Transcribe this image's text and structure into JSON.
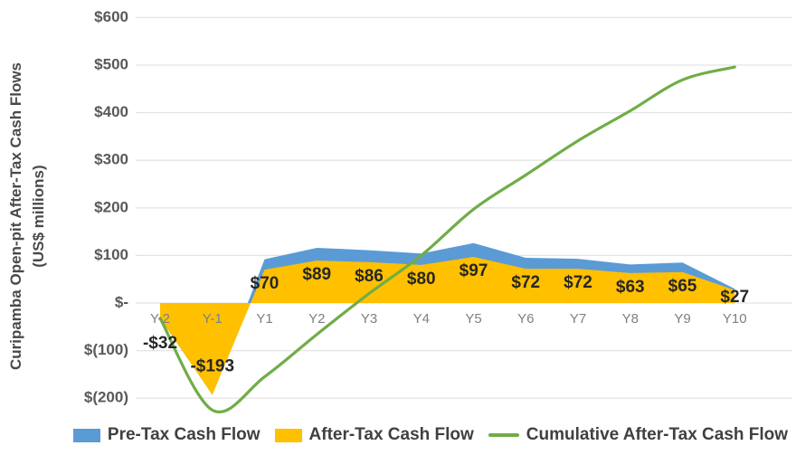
{
  "axis_title": {
    "line1": "Curipamba Open-pit After-Tax Cash Flows",
    "line2": "(US$ millions)"
  },
  "legend": [
    {
      "label": "Pre-Tax Cash Flow",
      "color": "#5B9BD5",
      "marker": "area-swatch"
    },
    {
      "label": "After-Tax Cash Flow",
      "color": "#FFC000",
      "marker": "area-swatch"
    },
    {
      "label": "Cumulative After-Tax Cash Flow",
      "color": "#70AD47",
      "marker": "line-swatch"
    }
  ],
  "chart_data": {
    "type": "area",
    "categories": [
      "Y-2",
      "Y-1",
      "Y1",
      "Y2",
      "Y3",
      "Y4",
      "Y5",
      "Y6",
      "Y7",
      "Y8",
      "Y9",
      "Y10"
    ],
    "series": [
      {
        "name": "Pre-Tax Cash Flow",
        "type": "area",
        "color": "#5B9BD5",
        "values": [
          -32,
          -193,
          92,
          116,
          111,
          104,
          126,
          95,
          93,
          81,
          85,
          30
        ],
        "note": "values estimated from pixels; mostly hidden behind after-tax area"
      },
      {
        "name": "After-Tax Cash Flow",
        "type": "area",
        "color": "#FFC000",
        "values": [
          -32,
          -193,
          70,
          89,
          86,
          80,
          97,
          72,
          72,
          63,
          65,
          27
        ],
        "labels": [
          "-$32",
          "-$193",
          "$70",
          "$89",
          "$86",
          "$80",
          "$97",
          "$72",
          "$72",
          "$63",
          "$65",
          "$27"
        ]
      },
      {
        "name": "Cumulative After-Tax Cash Flow",
        "type": "line",
        "color": "#70AD47",
        "smooth": true,
        "values": [
          -32,
          -225,
          -155,
          -66,
          20,
          100,
          197,
          269,
          341,
          404,
          469,
          496
        ],
        "note": "running total of after-tax cash flow, estimated from line position"
      }
    ],
    "title": "",
    "xlabel": "",
    "ylabel": "Curipamba Open-pit After-Tax Cash Flows (US$ millions)",
    "ylim": [
      -200,
      600
    ],
    "grid": true,
    "legend_position": "bottom",
    "y_axis": {
      "ticks": [
        {
          "v": 600,
          "label": "$600"
        },
        {
          "v": 500,
          "label": "$500"
        },
        {
          "v": 400,
          "label": "$400"
        },
        {
          "v": 300,
          "label": "$300"
        },
        {
          "v": 200,
          "label": "$200"
        },
        {
          "v": 100,
          "label": "$100"
        },
        {
          "v": 0,
          "label": "$-"
        },
        {
          "v": -100,
          "label": "$(100)"
        },
        {
          "v": -200,
          "label": "$(200)"
        }
      ]
    },
    "colors": {
      "grid": "#e4e4e4",
      "y_tick_text": "#595959",
      "x_tick_text": "#7f7f7f",
      "data_label_text": "#262626"
    }
  }
}
